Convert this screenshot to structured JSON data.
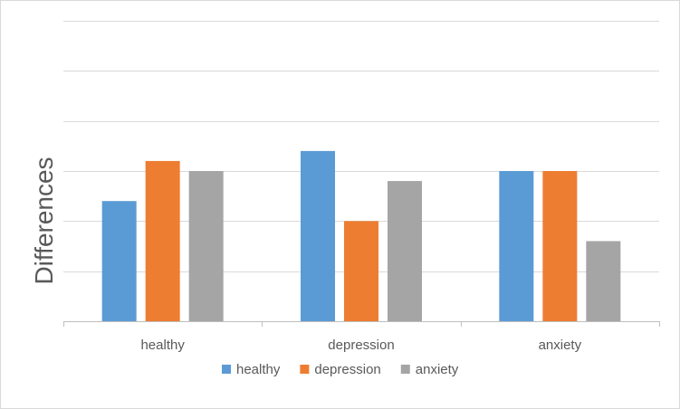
{
  "chart_data": {
    "type": "bar",
    "title": "",
    "xlabel": "",
    "ylabel": "Differences",
    "categories": [
      "healthy",
      "depression",
      "anxiety"
    ],
    "ylim": [
      0,
      6
    ],
    "grid": true,
    "legend_position": "bottom",
    "series": [
      {
        "name": "healthy",
        "color": "#5B9BD5",
        "values": [
          2.4,
          3.4,
          3.0
        ]
      },
      {
        "name": "depression",
        "color": "#ED7D31",
        "values": [
          3.2,
          2.0,
          3.0
        ]
      },
      {
        "name": "anxiety",
        "color": "#A5A5A5",
        "values": [
          3.0,
          2.8,
          1.6
        ]
      }
    ]
  }
}
